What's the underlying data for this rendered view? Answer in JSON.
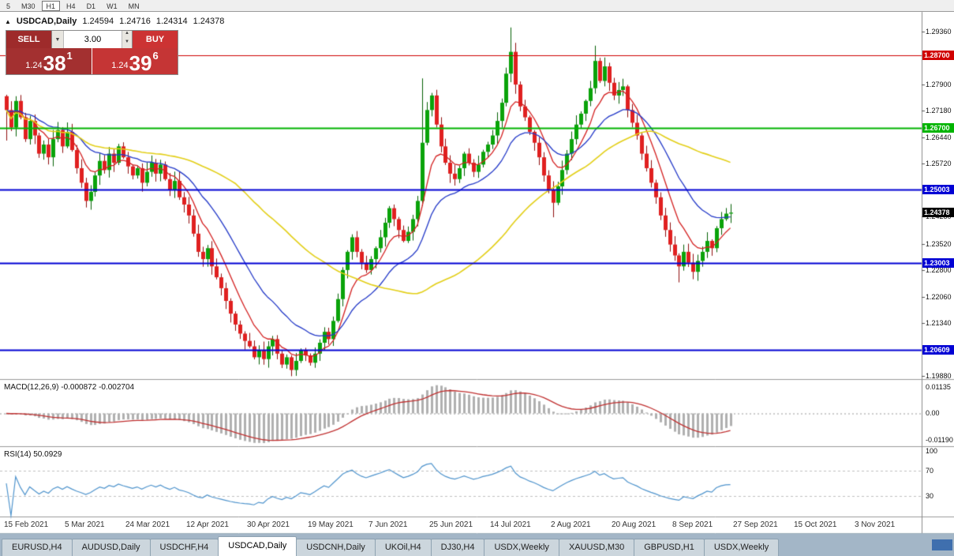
{
  "toolbar": {
    "periods": [
      {
        "label": "5",
        "active": false
      },
      {
        "label": "M30",
        "active": false
      },
      {
        "label": "H1",
        "active": true
      },
      {
        "label": "H4",
        "active": false
      },
      {
        "label": "D1",
        "active": false
      },
      {
        "label": "W1",
        "active": false
      },
      {
        "label": "MN",
        "active": false
      }
    ]
  },
  "header": {
    "marker": "▲",
    "symbol": "USDCAD,Daily",
    "open": "1.24594",
    "high": "1.24716",
    "low": "1.24314",
    "close": "1.24378"
  },
  "trade_panel": {
    "sell_label": "SELL",
    "buy_label": "BUY",
    "lot_value": "3.00",
    "icons": {
      "dropdown": "▼",
      "spin_up": "▲",
      "spin_down": "▼"
    },
    "sell_price": {
      "prefix": "1.24",
      "big": "38",
      "sup": "1"
    },
    "buy_price": {
      "prefix": "1.24",
      "big": "39",
      "sup": "6"
    }
  },
  "indicators": {
    "macd": {
      "label": "MACD(12,26,9) -0.000872 -0.002704",
      "params": [
        12,
        26,
        9
      ],
      "values": [
        -0.000872,
        -0.002704
      ],
      "axis_labels": [
        "0.01135",
        "0.00",
        "-0.01190"
      ]
    },
    "rsi": {
      "label": "RSI(14) 50.0929",
      "period": 14,
      "value": 50.0929,
      "levels": [
        70,
        30
      ],
      "axis_labels": [
        "100",
        "70",
        "30"
      ]
    }
  },
  "current_price": {
    "value": 1.24378,
    "label": "1.24378",
    "color": "#000000"
  },
  "tabs": [
    {
      "label": "EURUSD,H4",
      "active": false
    },
    {
      "label": "AUDUSD,Daily",
      "active": false
    },
    {
      "label": "USDCHF,H4",
      "active": false
    },
    {
      "label": "USDCAD,Daily",
      "active": true
    },
    {
      "label": "USDCNH,Daily",
      "active": false
    },
    {
      "label": "UKOil,H4",
      "active": false
    },
    {
      "label": "DJ30,H4",
      "active": false
    },
    {
      "label": "USDX,Weekly",
      "active": false
    },
    {
      "label": "XAUUSD,M30",
      "active": false
    },
    {
      "label": "GBPUSD,H1",
      "active": false
    },
    {
      "label": "USDX,Weekly",
      "active": false
    }
  ],
  "chart_data": {
    "type": "candlestick",
    "symbol": "USDCAD",
    "timeframe": "Daily",
    "first_open": 1.2758,
    "closes": [
      1.272,
      1.2672,
      1.2745,
      1.27,
      1.264,
      1.269,
      1.265,
      1.26,
      1.2625,
      1.259,
      1.264,
      1.2665,
      1.262,
      1.266,
      1.261,
      1.256,
      1.252,
      1.247,
      1.2495,
      1.254,
      1.258,
      1.2555,
      1.26,
      1.2575,
      1.262,
      1.259,
      1.2565,
      1.254,
      1.256,
      1.252,
      1.255,
      1.2575,
      1.2545,
      1.257,
      1.253,
      1.25,
      1.2525,
      1.248,
      1.246,
      1.243,
      1.238,
      1.233,
      1.231,
      1.234,
      1.229,
      1.226,
      1.223,
      1.2195,
      1.216,
      1.213,
      1.2105,
      1.2085,
      1.207,
      1.204,
      1.206,
      1.2035,
      1.207,
      1.209,
      1.205,
      1.202,
      1.204,
      1.2005,
      1.203,
      1.206,
      1.2045,
      1.2025,
      1.205,
      1.208,
      1.211,
      1.209,
      1.214,
      1.22,
      1.228,
      1.233,
      1.237,
      1.233,
      1.23,
      1.228,
      1.231,
      1.234,
      1.237,
      1.241,
      1.245,
      1.242,
      1.239,
      1.236,
      1.2385,
      1.242,
      1.247,
      1.263,
      1.272,
      1.276,
      1.268,
      1.262,
      1.2575,
      1.2545,
      1.253,
      1.256,
      1.26,
      1.2575,
      1.255,
      1.257,
      1.2605,
      1.2625,
      1.265,
      1.269,
      1.274,
      1.282,
      1.288,
      1.279,
      1.273,
      1.27,
      1.266,
      1.263,
      1.259,
      1.254,
      1.25,
      1.2465,
      1.251,
      1.2555,
      1.26,
      1.264,
      1.268,
      1.271,
      1.2745,
      1.278,
      1.2855,
      1.28,
      1.284,
      1.2795,
      1.276,
      1.2775,
      1.2785,
      1.272,
      1.2685,
      1.265,
      1.26,
      1.256,
      1.252,
      1.248,
      1.243,
      1.239,
      1.235,
      1.232,
      1.229,
      1.233,
      1.23,
      1.2275,
      1.2305,
      1.233,
      1.236,
      1.234,
      1.2395,
      1.242,
      1.2435,
      1.24378
    ],
    "wick_overrides": {
      "0": {
        "high": 1.2762,
        "low": 1.2636
      },
      "2": {
        "high": 1.2758
      },
      "17": {
        "low": 1.2452
      },
      "61": {
        "low": 1.1988
      },
      "89": {
        "high": 1.2807
      },
      "108": {
        "high": 1.2947
      },
      "117": {
        "low": 1.2425
      },
      "126": {
        "high": 1.2897
      },
      "144": {
        "low": 1.2246
      }
    },
    "moving_averages": [
      {
        "name": "fast",
        "type": "ema",
        "period": 8,
        "color": "#d42020"
      },
      {
        "name": "medium",
        "type": "ema",
        "period": 20,
        "color": "#2238c8"
      },
      {
        "name": "slow",
        "type": "sma",
        "period": 50,
        "color": "#e3cf17"
      }
    ],
    "levels": [
      {
        "value": 1.287,
        "label": "1.28700",
        "color": "#d00000",
        "width": 1
      },
      {
        "value": 1.267,
        "label": "1.26700",
        "color": "#00b400",
        "width": 2
      },
      {
        "value": 1.25003,
        "label": "1.25003",
        "color": "#0000d4",
        "width": 2
      },
      {
        "value": 1.23003,
        "label": "1.23003",
        "color": "#0000d4",
        "width": 2
      },
      {
        "value": 1.20609,
        "label": "1.20609",
        "color": "#0000d4",
        "width": 2
      }
    ],
    "y_axis": {
      "price_max": 1.299,
      "price_min": 1.198,
      "ticks": [
        {
          "value": 1.2936,
          "label": "1.29360"
        },
        {
          "value": 1.279,
          "label": "1.27900"
        },
        {
          "value": 1.2718,
          "label": "1.27180"
        },
        {
          "value": 1.2644,
          "label": "1.26440"
        },
        {
          "value": 1.2572,
          "label": "1.25720"
        },
        {
          "value": 1.2428,
          "label": "1.24280"
        },
        {
          "value": 1.2352,
          "label": "1.23520"
        },
        {
          "value": 1.228,
          "label": "1.22800"
        },
        {
          "value": 1.2206,
          "label": "1.22060"
        },
        {
          "value": 1.2134,
          "label": "1.21340"
        },
        {
          "value": 1.1988,
          "label": "1.19880"
        }
      ]
    },
    "x_axis": {
      "labels": [
        "15 Feb 2021",
        "5 Mar 2021",
        "24 Mar 2021",
        "12 Apr 2021",
        "30 Apr 2021",
        "19 May 2021",
        "7 Jun 2021",
        "25 Jun 2021",
        "14 Jul 2021",
        "2 Aug 2021",
        "20 Aug 2021",
        "8 Sep 2021",
        "27 Sep 2021",
        "15 Oct 2021",
        "3 Nov 2021"
      ]
    }
  }
}
